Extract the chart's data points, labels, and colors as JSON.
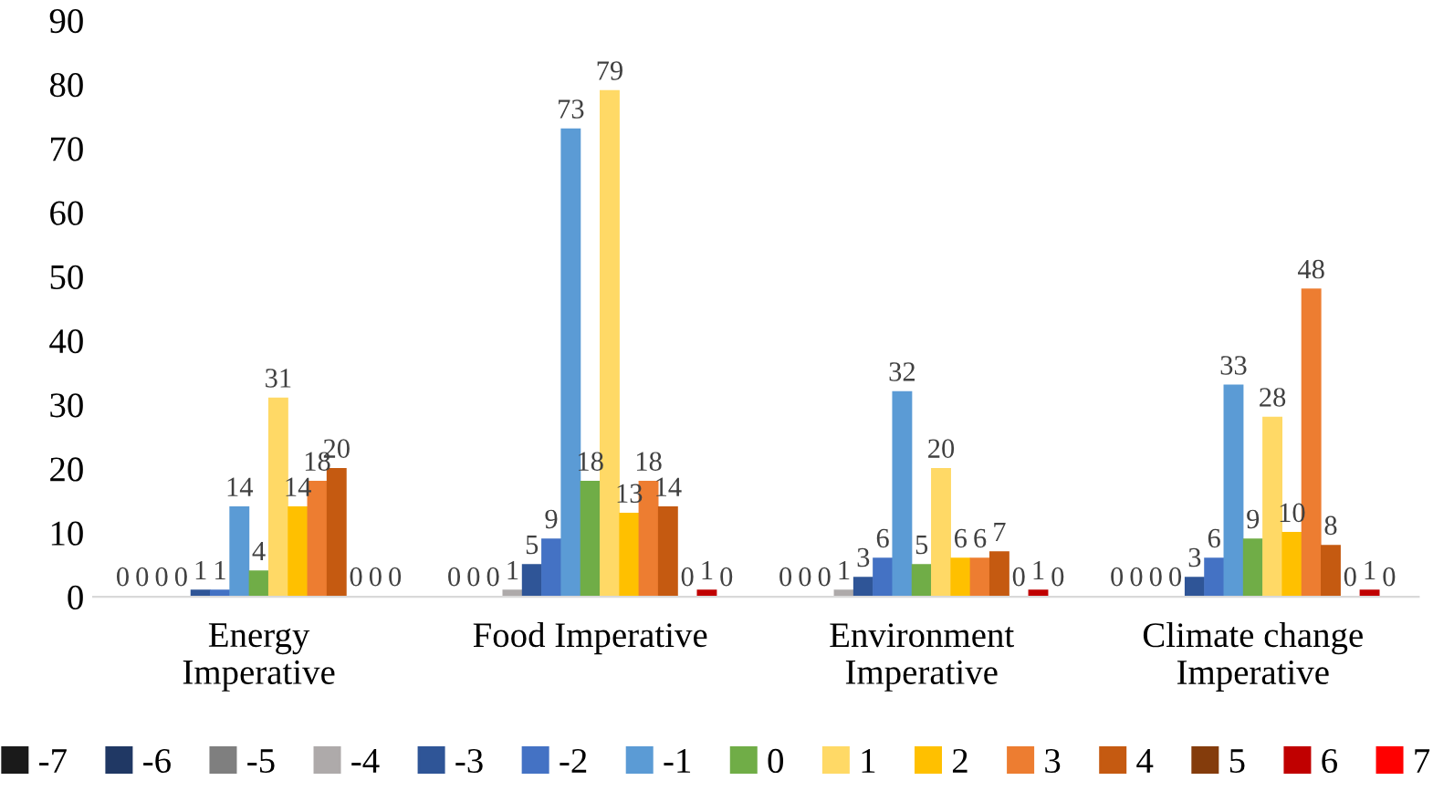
{
  "chart_data": {
    "type": "bar",
    "categories": [
      "Energy\nImperative",
      "Food Imperative",
      "Environment\nImperative",
      "Climate change\nImperative"
    ],
    "ylim": [
      0,
      90
    ],
    "yticks": [
      0,
      10,
      20,
      30,
      40,
      50,
      60,
      70,
      80,
      90
    ],
    "grid": false,
    "legend": "bottom",
    "data_labels": true,
    "series": [
      {
        "name": "-7",
        "color": "#1a1a1a",
        "values": [
          0,
          0,
          0,
          0
        ]
      },
      {
        "name": "-6",
        "color": "#203864",
        "values": [
          0,
          0,
          0,
          0
        ]
      },
      {
        "name": "-5",
        "color": "#7f7f7f",
        "values": [
          0,
          0,
          0,
          0
        ]
      },
      {
        "name": "-4",
        "color": "#aeaaaa",
        "values": [
          0,
          1,
          1,
          0
        ]
      },
      {
        "name": "-3",
        "color": "#2f5597",
        "values": [
          1,
          5,
          3,
          3
        ]
      },
      {
        "name": "-2",
        "color": "#4472c4",
        "values": [
          1,
          9,
          6,
          6
        ]
      },
      {
        "name": "-1",
        "color": "#5b9bd5",
        "values": [
          14,
          73,
          32,
          33
        ]
      },
      {
        "name": "0",
        "color": "#70ad47",
        "values": [
          4,
          18,
          5,
          9
        ]
      },
      {
        "name": "1",
        "color": "#ffd966",
        "values": [
          31,
          79,
          20,
          28
        ]
      },
      {
        "name": "2",
        "color": "#ffc000",
        "values": [
          14,
          13,
          6,
          10
        ]
      },
      {
        "name": "3",
        "color": "#ed7d31",
        "values": [
          18,
          18,
          6,
          48
        ]
      },
      {
        "name": "4",
        "color": "#c55a11",
        "values": [
          20,
          14,
          7,
          8
        ]
      },
      {
        "name": "5",
        "color": "#843c0c",
        "values": [
          0,
          0,
          0,
          0
        ]
      },
      {
        "name": "6",
        "color": "#c00000",
        "values": [
          0,
          1,
          1,
          1
        ]
      },
      {
        "name": "7",
        "color": "#ff0000",
        "values": [
          0,
          0,
          0,
          0
        ]
      }
    ]
  }
}
